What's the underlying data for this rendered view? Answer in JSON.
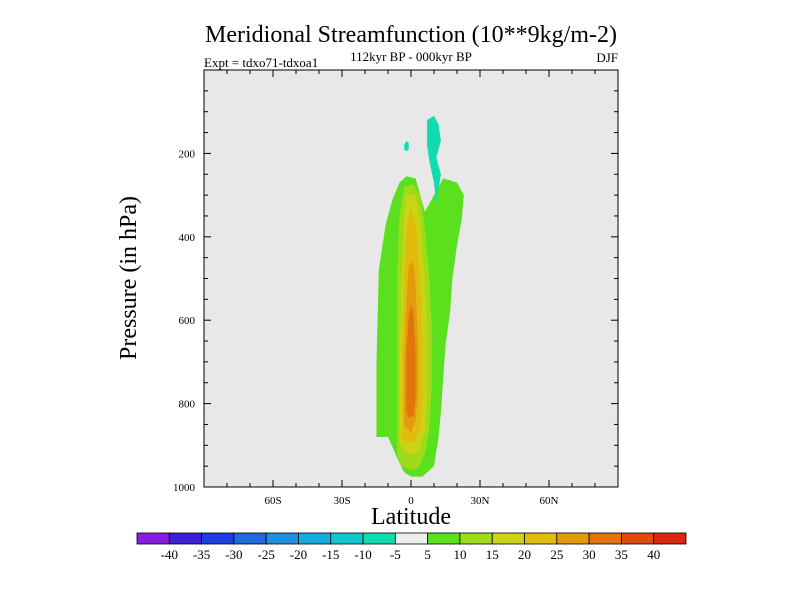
{
  "chart_data": {
    "type": "heatmap",
    "title": "Meridional Streamfunction (10**9kg/m-2)",
    "subtitle": "112kyr BP - 000kyr BP",
    "left_label": "Expt = tdxo71-tdxoa1",
    "right_label": "DJF",
    "xlabel": "Latitude",
    "ylabel": "Pressure (in hPa)",
    "xlim": [
      -90,
      90
    ],
    "ylim": [
      1000,
      0
    ],
    "x_ticks": [
      {
        "value": -60,
        "label": "60S"
      },
      {
        "value": -30,
        "label": "30S"
      },
      {
        "value": 0,
        "label": "0"
      },
      {
        "value": 30,
        "label": "30N"
      },
      {
        "value": 60,
        "label": "60N"
      }
    ],
    "y_ticks": [
      {
        "value": 200,
        "label": "200"
      },
      {
        "value": 400,
        "label": "400"
      },
      {
        "value": 600,
        "label": "600"
      },
      {
        "value": 800,
        "label": "800"
      },
      {
        "value": 1000,
        "label": "1000"
      }
    ],
    "background_color": "#e8e8e8",
    "colorbar": {
      "labels": [
        "-40",
        "-35",
        "-30",
        "-25",
        "-20",
        "-15",
        "-10",
        "-5",
        "5",
        "10",
        "15",
        "20",
        "25",
        "30",
        "35",
        "40"
      ],
      "colors": [
        "#8a1be0",
        "#3d1fd6",
        "#1c3ee0",
        "#1f6bdb",
        "#1e8fdc",
        "#15aedc",
        "#12c8cf",
        "#10dcb0",
        "#eeeeee",
        "#5be01e",
        "#9edc1a",
        "#cbd414",
        "#e2bc0c",
        "#e39a0c",
        "#e3740c",
        "#e04a0c",
        "#d8280e"
      ]
    },
    "contours": [
      {
        "level": "5 to 10",
        "color": "#5be01e",
        "points": [
          [
            -15,
            880
          ],
          [
            -15,
            700
          ],
          [
            -14,
            480
          ],
          [
            -11,
            370
          ],
          [
            -8,
            310
          ],
          [
            -5,
            270
          ],
          [
            -2,
            255
          ],
          [
            2,
            260
          ],
          [
            4,
            300
          ],
          [
            6,
            340
          ],
          [
            10,
            300
          ],
          [
            14,
            260
          ],
          [
            20,
            270
          ],
          [
            23,
            300
          ],
          [
            22,
            360
          ],
          [
            20,
            420
          ],
          [
            18,
            500
          ],
          [
            17,
            580
          ],
          [
            15,
            660
          ],
          [
            14,
            740
          ],
          [
            13,
            820
          ],
          [
            12,
            880
          ],
          [
            10,
            950
          ],
          [
            5,
            975
          ],
          [
            0,
            975
          ],
          [
            -3,
            965
          ],
          [
            -6,
            930
          ],
          [
            -10,
            880
          ]
        ]
      },
      {
        "level": "10 to 15",
        "color": "#9edc1a",
        "points": [
          [
            -6,
            920
          ],
          [
            -6,
            700
          ],
          [
            -6,
            500
          ],
          [
            -5,
            350
          ],
          [
            -3,
            280
          ],
          [
            1,
            275
          ],
          [
            4,
            300
          ],
          [
            6,
            380
          ],
          [
            8,
            500
          ],
          [
            9,
            620
          ],
          [
            9,
            760
          ],
          [
            8,
            860
          ],
          [
            6,
            920
          ],
          [
            3,
            955
          ],
          [
            0,
            960
          ],
          [
            -4,
            950
          ]
        ]
      },
      {
        "level": "15 to 20",
        "color": "#cbd414",
        "points": [
          [
            -5,
            895
          ],
          [
            -5,
            700
          ],
          [
            -4,
            500
          ],
          [
            -3,
            350
          ],
          [
            -2,
            300
          ],
          [
            2,
            300
          ],
          [
            4,
            360
          ],
          [
            6,
            500
          ],
          [
            7,
            640
          ],
          [
            7,
            780
          ],
          [
            6,
            870
          ],
          [
            3,
            920
          ],
          [
            -2,
            920
          ]
        ]
      },
      {
        "level": "20 to 25",
        "color": "#e2bc0c",
        "points": [
          [
            -4,
            880
          ],
          [
            -4,
            700
          ],
          [
            -3,
            500
          ],
          [
            -2,
            380
          ],
          [
            0,
            330
          ],
          [
            2,
            370
          ],
          [
            4,
            500
          ],
          [
            5,
            650
          ],
          [
            5,
            780
          ],
          [
            4,
            860
          ],
          [
            1,
            895
          ],
          [
            -2,
            890
          ]
        ]
      },
      {
        "level": "25 to 30",
        "color": "#e39a0c",
        "points": [
          [
            -3,
            850
          ],
          [
            -3,
            700
          ],
          [
            -2,
            560
          ],
          [
            -1,
            470
          ],
          [
            1,
            460
          ],
          [
            2,
            520
          ],
          [
            3,
            650
          ],
          [
            3,
            780
          ],
          [
            2,
            840
          ],
          [
            0,
            870
          ]
        ]
      },
      {
        "level": "30 to 35",
        "color": "#e3740c",
        "points": [
          [
            -2,
            820
          ],
          [
            -2,
            680
          ],
          [
            -1,
            590
          ],
          [
            0,
            560
          ],
          [
            1,
            580
          ],
          [
            2,
            680
          ],
          [
            2,
            790
          ],
          [
            1,
            830
          ],
          [
            -1,
            835
          ]
        ]
      },
      {
        "level": "-10 to -5",
        "color": "#10dcb0",
        "points": [
          [
            7,
            120
          ],
          [
            10,
            110
          ],
          [
            12,
            130
          ],
          [
            13,
            170
          ],
          [
            11,
            210
          ],
          [
            13,
            250
          ],
          [
            11,
            320
          ],
          [
            10,
            270
          ],
          [
            8,
            220
          ],
          [
            7,
            180
          ]
        ]
      },
      {
        "level": "-10 to -5",
        "color": "#10dcb0",
        "points": [
          [
            -3,
            180
          ],
          [
            -2,
            170
          ],
          [
            -1,
            175
          ],
          [
            -1,
            190
          ],
          [
            -2,
            195
          ],
          [
            -3,
            190
          ]
        ]
      }
    ]
  }
}
